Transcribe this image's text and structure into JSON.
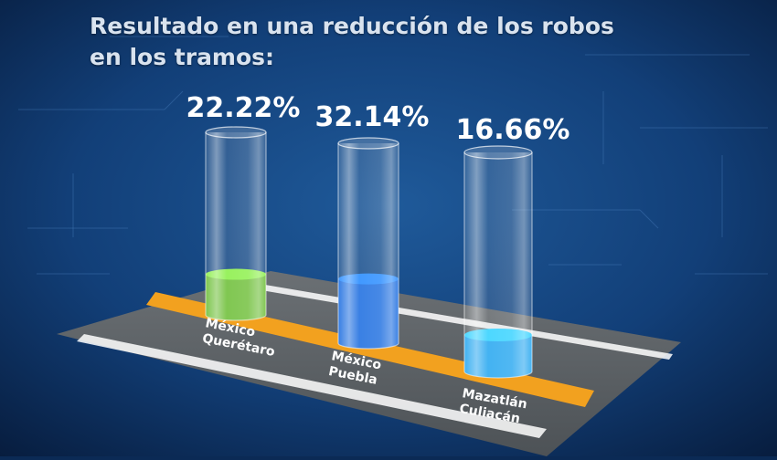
{
  "headline": {
    "line1": "Resultado en una reducción de los robos",
    "line2": "en los tramos:"
  },
  "colors": {
    "background": "#0b2a55",
    "road": "#5a5f63",
    "lane_line": "#f2a11f",
    "edge_line": "#ffffff",
    "series": [
      "#6fbf3a",
      "#1f6fe0",
      "#2aa8f0"
    ]
  },
  "chart_data": {
    "type": "bar",
    "title": "Resultado en una reducción de los robos en los tramos:",
    "categories": [
      [
        "México",
        "Querétaro"
      ],
      [
        "México",
        "Puebla"
      ],
      [
        "Mazatlán",
        "Culiacán"
      ]
    ],
    "values": [
      22.22,
      32.14,
      16.66
    ],
    "value_labels": [
      "22.22%",
      "32.14%",
      "16.66%"
    ],
    "unit": "%",
    "ylim": [
      0,
      100
    ],
    "grid": false,
    "legend": "none"
  }
}
